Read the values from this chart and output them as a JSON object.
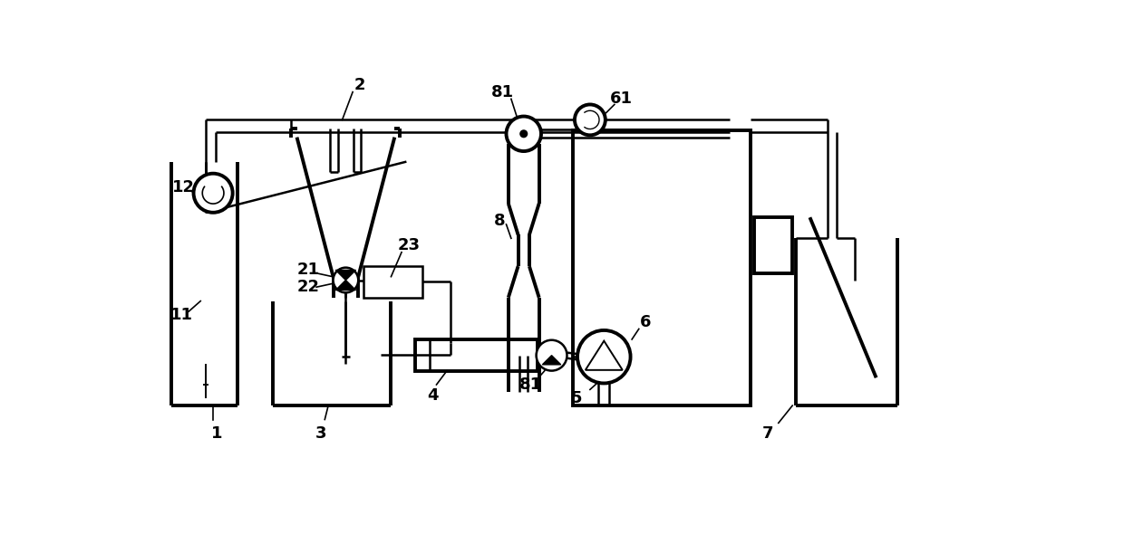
{
  "bg_color": "#ffffff",
  "line_color": "#000000",
  "lw_thick": 2.8,
  "lw_thin": 1.4,
  "lw_medium": 1.8,
  "fig_width": 12.4,
  "fig_height": 5.9
}
